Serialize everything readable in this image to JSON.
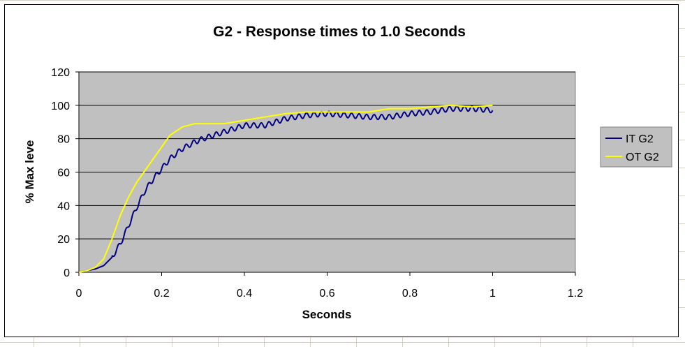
{
  "chart_data": {
    "type": "line",
    "title": "G2 - Response times to 1.0 Seconds",
    "xlabel": "Seconds",
    "ylabel": "% Max leve",
    "xlim": [
      0,
      1.2
    ],
    "ylim": [
      0,
      120
    ],
    "x_ticks": [
      "0",
      "0.2",
      "0.4",
      "0.6",
      "0.8",
      "1",
      "1.2"
    ],
    "y_ticks": [
      "0",
      "20",
      "40",
      "60",
      "80",
      "100",
      "120"
    ],
    "grid": "horizontal",
    "plot_background": "#c0c0c0",
    "legend_position": "right",
    "series": [
      {
        "name": "IT G2",
        "color": "#000080",
        "x": [
          0,
          0.02,
          0.04,
          0.06,
          0.08,
          0.1,
          0.12,
          0.14,
          0.16,
          0.18,
          0.2,
          0.22,
          0.25,
          0.28,
          0.3,
          0.35,
          0.4,
          0.45,
          0.5,
          0.55,
          0.6,
          0.65,
          0.7,
          0.75,
          0.8,
          0.85,
          0.9,
          0.95,
          1.0
        ],
        "y": [
          0,
          1,
          2,
          4,
          9,
          17,
          28,
          39,
          49,
          56,
          62,
          68,
          74,
          78,
          80,
          84,
          88,
          88,
          92,
          94,
          95,
          94,
          93,
          93,
          95,
          96,
          98,
          98,
          97
        ],
        "ripple": 1.5
      },
      {
        "name": "OT G2",
        "color": "#ffff00",
        "x": [
          0,
          0.02,
          0.04,
          0.06,
          0.08,
          0.1,
          0.12,
          0.14,
          0.16,
          0.18,
          0.2,
          0.22,
          0.25,
          0.28,
          0.3,
          0.35,
          0.4,
          0.45,
          0.5,
          0.55,
          0.6,
          0.65,
          0.7,
          0.75,
          0.8,
          0.85,
          0.9,
          0.95,
          1.0
        ],
        "y": [
          0,
          1,
          3,
          8,
          20,
          34,
          45,
          54,
          61,
          68,
          75,
          82,
          87,
          89,
          89,
          89,
          91,
          93,
          95,
          96,
          96,
          96,
          96,
          98,
          98,
          99,
          100,
          99,
          100
        ],
        "ripple": 0
      }
    ]
  }
}
